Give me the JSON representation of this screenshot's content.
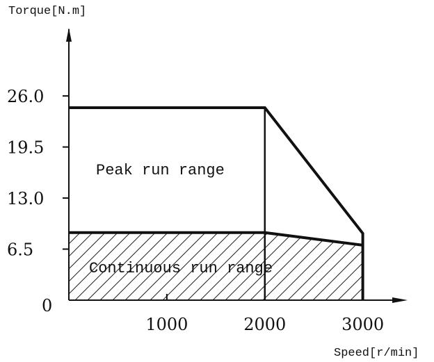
{
  "chart_data": {
    "type": "area",
    "ylabel": "Torque[N.m]",
    "xlabel": "Speed[r/min]",
    "x_ticks": [
      0,
      1000,
      2000,
      3000
    ],
    "x_tick_labels": [
      "",
      "1000",
      "2000",
      "3000"
    ],
    "y_ticks": [
      0,
      6.5,
      13.0,
      19.5,
      26.0
    ],
    "y_tick_labels": [
      "0",
      "6.5",
      "13.0",
      "19.5",
      "26.0"
    ],
    "xlim": [
      0,
      3400
    ],
    "ylim": [
      0,
      34.5
    ],
    "series": [
      {
        "name": "Peak run range",
        "x": [
          0,
          0,
          2000,
          3000,
          3000
        ],
        "y": [
          0,
          24.5,
          24.5,
          8.5,
          0
        ]
      },
      {
        "name": "Continuous run range",
        "x": [
          0,
          0,
          2000,
          3000,
          3000
        ],
        "y": [
          0,
          8.6,
          8.6,
          7.0,
          0
        ]
      }
    ],
    "legend": "none",
    "grid": false
  }
}
